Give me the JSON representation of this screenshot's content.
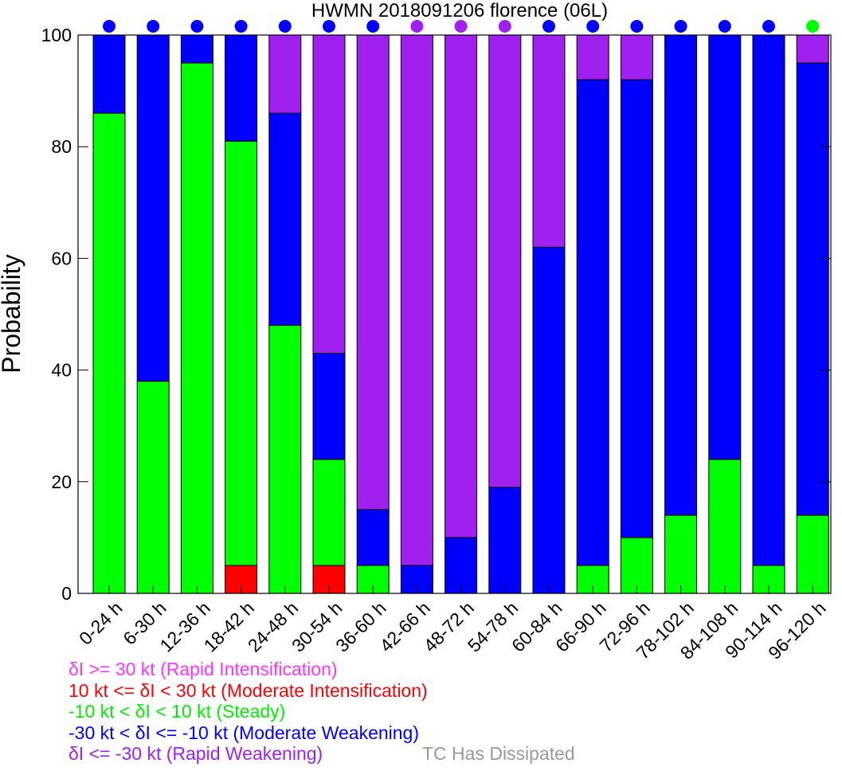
{
  "chart_data": {
    "type": "bar",
    "stacked": true,
    "title": "HWMN 2018091206 florence (06L)",
    "ylabel": "Probability",
    "xlabel": "",
    "ylim": [
      0,
      100
    ],
    "yticks": [
      0,
      20,
      40,
      60,
      80,
      100
    ],
    "categories": [
      "0-24 h",
      "6-30 h",
      "12-36 h",
      "18-42 h",
      "24-48 h",
      "30-54 h",
      "36-60 h",
      "42-66 h",
      "48-72 h",
      "54-78 h",
      "60-84 h",
      "66-90 h",
      "72-96 h",
      "78-102 h",
      "84-108 h",
      "90-114 h",
      "96-120 h"
    ],
    "series": [
      {
        "name": "δI >= 30 kt (Rapid Intensification)",
        "color": "#ff33ff",
        "values": [
          0,
          0,
          0,
          0,
          0,
          0,
          0,
          0,
          0,
          0,
          0,
          0,
          0,
          0,
          0,
          0,
          0
        ]
      },
      {
        "name": "10 kt <= δI < 30 kt (Moderate Intensification)",
        "color": "#ff0000",
        "values": [
          0,
          0,
          0,
          5,
          0,
          5,
          0,
          0,
          0,
          0,
          0,
          0,
          0,
          0,
          0,
          0,
          0
        ]
      },
      {
        "name": "-10 kt < δI < 10 kt (Steady)",
        "color": "#00ff00",
        "values": [
          86,
          38,
          95,
          76,
          48,
          19,
          5,
          0,
          0,
          0,
          0,
          5,
          10,
          14,
          24,
          5,
          14
        ]
      },
      {
        "name": "-30 kt < δI <= -10 kt (Moderate Weakening)",
        "color": "#0000ff",
        "values": [
          14,
          62,
          5,
          19,
          38,
          19,
          10,
          5,
          10,
          19,
          62,
          87,
          82,
          86,
          76,
          95,
          81
        ]
      },
      {
        "name": "δI <= -30 kt (Rapid Weakening)",
        "color": "#a020f0",
        "values": [
          0,
          0,
          0,
          0,
          14,
          57,
          85,
          95,
          90,
          81,
          38,
          8,
          8,
          0,
          0,
          0,
          5
        ]
      }
    ],
    "top_markers": [
      "#0000ff",
      "#0000ff",
      "#0000ff",
      "#0000ff",
      "#0000ff",
      "#0000ff",
      "#0000ff",
      "#a020f0",
      "#a020f0",
      "#a020f0",
      "#0000ff",
      "#0000ff",
      "#0000ff",
      "#0000ff",
      "#0000ff",
      "#0000ff",
      "#00ff00"
    ],
    "dissipated_label": "TC Has Dissipated",
    "dissipated_color": "#999999",
    "grid": false
  }
}
